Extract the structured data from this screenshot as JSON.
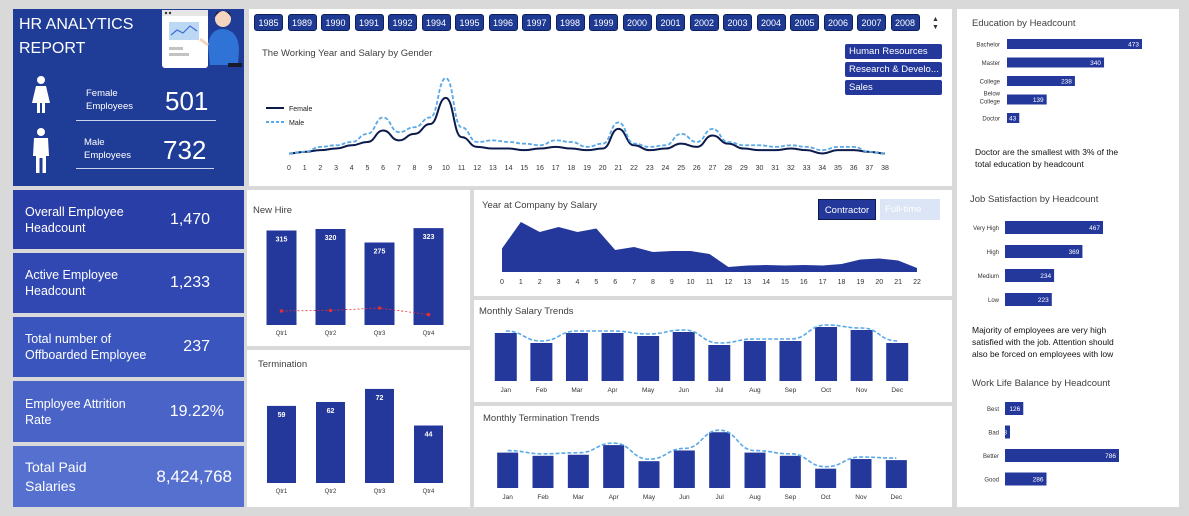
{
  "header": {
    "title_line1": "HR ANALYTICS",
    "title_line2": "REPORT",
    "female_label": "Female\nEmployees",
    "female_value": "501",
    "male_label": "Male\nEmployees",
    "male_value": "732"
  },
  "kpis": [
    {
      "label": "Overall Employee Headcount",
      "value": "1,470",
      "color": "#2a3ea8"
    },
    {
      "label": "Active Employee Headcount",
      "value": "1,233",
      "color": "#3148b2"
    },
    {
      "label": "Total number of Offboarded Employee",
      "value": "237",
      "color": "#3a55bd"
    },
    {
      "label": "Employee Attrition Rate",
      "value": "19.22%",
      "color": "#4a63c6"
    },
    {
      "label": "Total Paid Salaries",
      "value": "8,424,768",
      "color": "#5570cf"
    }
  ],
  "years": [
    "1985",
    "1989",
    "1990",
    "1991",
    "1992",
    "1994",
    "1995",
    "1996",
    "1997",
    "1998",
    "1999",
    "2000",
    "2001",
    "2002",
    "2003",
    "2004",
    "2005",
    "2006",
    "2007",
    "2008"
  ],
  "departments": [
    "Human Resources",
    "Research & Develo...",
    "Sales"
  ],
  "colors": {
    "navy": "#24389c",
    "dark": "#0d1b4c",
    "light": "#5aa9e6",
    "red": "#e03030"
  },
  "chart_data": [
    {
      "id": "gender",
      "type": "line",
      "title": "The Working Year and Salary by Gender",
      "x": [
        "0",
        "1",
        "2",
        "3",
        "4",
        "5",
        "6",
        "7",
        "8",
        "9",
        "10",
        "11",
        "12",
        "13",
        "14",
        "15",
        "16",
        "17",
        "18",
        "19",
        "20",
        "21",
        "22",
        "23",
        "24",
        "25",
        "26",
        "27",
        "28",
        "29",
        "30",
        "31",
        "32",
        "33",
        "34",
        "35",
        "36",
        "37",
        "38"
      ],
      "series": [
        {
          "name": "Female",
          "values": [
            4,
            5,
            6,
            7,
            9,
            11,
            18,
            12,
            16,
            22,
            38,
            14,
            8,
            7,
            7,
            6,
            7,
            8,
            7,
            6,
            7,
            19,
            9,
            6,
            7,
            10,
            8,
            15,
            10,
            7,
            6,
            6,
            7,
            6,
            4,
            6,
            6,
            5,
            4
          ]
        },
        {
          "name": "Male",
          "values": [
            4,
            5,
            8,
            9,
            11,
            16,
            26,
            17,
            20,
            26,
            50,
            20,
            11,
            12,
            11,
            10,
            9,
            12,
            11,
            8,
            10,
            23,
            10,
            8,
            9,
            16,
            11,
            19,
            11,
            9,
            9,
            8,
            9,
            8,
            6,
            8,
            8,
            5,
            4
          ]
        }
      ],
      "ylim": [
        0,
        55
      ]
    },
    {
      "id": "newhire",
      "type": "bar",
      "title": "New Hire",
      "categories": [
        "Qtr1",
        "Qtr2",
        "Qtr3",
        "Qtr4"
      ],
      "values": [
        315,
        320,
        275,
        323
      ],
      "line_values": [
        60,
        62,
        70,
        48
      ],
      "ylim": [
        0,
        330
      ]
    },
    {
      "id": "termination",
      "type": "bar",
      "title": "Termination",
      "categories": [
        "Qtr1",
        "Qtr2",
        "Qtr3",
        "Qtr4"
      ],
      "values": [
        59,
        62,
        72,
        44
      ],
      "ylim": [
        0,
        75
      ]
    },
    {
      "id": "yearsalary",
      "type": "area",
      "title": "Year at Company by Salary",
      "x": [
        "0",
        "1",
        "2",
        "3",
        "4",
        "5",
        "6",
        "7",
        "8",
        "9",
        "10",
        "11",
        "12",
        "13",
        "14",
        "15",
        "16",
        "17",
        "18",
        "19",
        "20",
        "21",
        "22"
      ],
      "values": [
        47,
        100,
        80,
        90,
        80,
        87,
        44,
        50,
        40,
        42,
        42,
        36,
        10,
        13,
        14,
        13,
        14,
        13,
        16,
        25,
        27,
        23,
        8
      ],
      "ylim": [
        0,
        100
      ]
    },
    {
      "id": "monthlysalary",
      "type": "bar",
      "title": "Monthly Salary Trends",
      "categories": [
        "Jan",
        "Feb",
        "Mar",
        "Apr",
        "May",
        "Jun",
        "Jul",
        "Aug",
        "Sep",
        "Oct",
        "Nov",
        "Dec"
      ],
      "values": [
        48,
        38,
        48,
        48,
        45,
        49,
        36,
        40,
        40,
        54,
        51,
        38
      ],
      "ylim": [
        0,
        60
      ]
    },
    {
      "id": "monthlytermination",
      "type": "bar",
      "title": "Monthly  Termination Trends",
      "categories": [
        "Jan",
        "Feb",
        "Mar",
        "Apr",
        "May",
        "Jun",
        "Jul",
        "Aug",
        "Sep",
        "Oct",
        "Nov",
        "Dec"
      ],
      "values": [
        33,
        30,
        31,
        40,
        25,
        35,
        52,
        33,
        30,
        18,
        27,
        26
      ],
      "ylim": [
        0,
        55
      ]
    },
    {
      "id": "education",
      "type": "bar",
      "title": "Education by Headcount",
      "categories": [
        "Bachelor",
        "Master",
        "College",
        "Below College",
        "Doctor"
      ],
      "values": [
        473,
        340,
        238,
        139,
        43
      ],
      "ylim": [
        0,
        473
      ]
    },
    {
      "id": "jobsat",
      "type": "bar",
      "title": "Job Satisfaction by Headcount",
      "categories": [
        "Very High",
        "High",
        "Medium",
        "Low"
      ],
      "values": [
        467,
        369,
        234,
        223
      ],
      "ylim": [
        0,
        467
      ]
    },
    {
      "id": "worklife",
      "type": "bar",
      "title": "Work Life Balance by Headcount",
      "categories": [
        "Best",
        "Bad",
        "Better",
        "Good"
      ],
      "values": [
        126,
        8,
        786,
        286
      ],
      "ylim": [
        0,
        786
      ]
    }
  ],
  "toggles": {
    "contractor": "Contractor",
    "fulltime": "Full-time"
  },
  "notes": {
    "education": "Doctor are the smallest with  3% of the total education by headcount",
    "jobsat": "Majority of  employees are very high satisfied with the job. Attention should also be forced on employees with low"
  }
}
